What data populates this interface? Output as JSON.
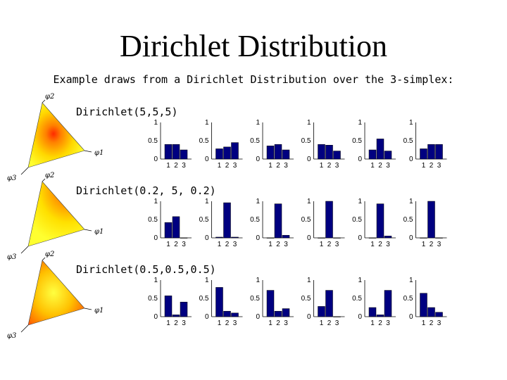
{
  "slide": {
    "title": "Dirichlet Distribution",
    "subtitle": "Example draws from a Dirichlet Distribution over the 3-simplex:"
  },
  "colors": {
    "bar": "#000080",
    "simplex_edge": "#ffff20",
    "simplex_peak": "#ff3000"
  },
  "chart_data": {
    "type": "bar",
    "rows": [
      {
        "label": "Dirichlet(5,5,5)",
        "simplex_axes": [
          "φ1",
          "φ2",
          "φ3"
        ],
        "simplex_mode": "center",
        "panels": [
          {
            "categories": [
              "1",
              "2",
              "3"
            ],
            "values": [
              0.4,
              0.4,
              0.25
            ],
            "ylim": [
              0,
              1
            ],
            "yticks": [
              "0",
              "0.5",
              "1"
            ]
          },
          {
            "categories": [
              "1",
              "2",
              "3"
            ],
            "values": [
              0.28,
              0.33,
              0.45
            ],
            "ylim": [
              0,
              1
            ],
            "yticks": [
              "0",
              "0.5",
              "1"
            ]
          },
          {
            "categories": [
              "1",
              "2",
              "3"
            ],
            "values": [
              0.36,
              0.4,
              0.25
            ],
            "ylim": [
              0,
              1
            ],
            "yticks": [
              "0",
              "0.5",
              "1"
            ]
          },
          {
            "categories": [
              "1",
              "2",
              "3"
            ],
            "values": [
              0.4,
              0.38,
              0.22
            ],
            "ylim": [
              0,
              1
            ],
            "yticks": [
              "0",
              "0.5",
              "1"
            ]
          },
          {
            "categories": [
              "1",
              "2",
              "3"
            ],
            "values": [
              0.25,
              0.55,
              0.22
            ],
            "ylim": [
              0,
              1
            ],
            "yticks": [
              "0",
              "0.5",
              "1"
            ]
          },
          {
            "categories": [
              "1",
              "2",
              "3"
            ],
            "values": [
              0.28,
              0.4,
              0.4
            ],
            "ylim": [
              0,
              1
            ],
            "yticks": [
              "0",
              "0.5",
              "1"
            ]
          }
        ]
      },
      {
        "label": "Dirichlet(0.2, 5, 0.2)",
        "simplex_axes": [
          "φ1",
          "φ2",
          "φ3"
        ],
        "simplex_mode": "phi2",
        "panels": [
          {
            "categories": [
              "1",
              "2",
              "3"
            ],
            "values": [
              0.42,
              0.58,
              0.0
            ],
            "ylim": [
              0,
              1
            ],
            "yticks": [
              "0",
              "0.5",
              "1"
            ]
          },
          {
            "categories": [
              "1",
              "2",
              "3"
            ],
            "values": [
              0.02,
              0.96,
              0.02
            ],
            "ylim": [
              0,
              1
            ],
            "yticks": [
              "0",
              "0.5",
              "1"
            ]
          },
          {
            "categories": [
              "1",
              "2",
              "3"
            ],
            "values": [
              0.0,
              0.93,
              0.07
            ],
            "ylim": [
              0,
              1
            ],
            "yticks": [
              "0",
              "0.5",
              "1"
            ]
          },
          {
            "categories": [
              "1",
              "2",
              "3"
            ],
            "values": [
              0.0,
              1.0,
              0.0
            ],
            "ylim": [
              0,
              1
            ],
            "yticks": [
              "0",
              "0.5",
              "1"
            ]
          },
          {
            "categories": [
              "1",
              "2",
              "3"
            ],
            "values": [
              0.0,
              0.93,
              0.05
            ],
            "ylim": [
              0,
              1
            ],
            "yticks": [
              "0",
              "0.5",
              "1"
            ]
          },
          {
            "categories": [
              "1",
              "2",
              "3"
            ],
            "values": [
              0.0,
              1.0,
              0.0
            ],
            "ylim": [
              0,
              1
            ],
            "yticks": [
              "0",
              "0.5",
              "1"
            ]
          }
        ]
      },
      {
        "label": "Dirichlet(0.5,0.5,0.5)",
        "simplex_axes": [
          "φ1",
          "φ2",
          "φ3"
        ],
        "simplex_mode": "corners",
        "panels": [
          {
            "categories": [
              "1",
              "2",
              "3"
            ],
            "values": [
              0.57,
              0.05,
              0.4
            ],
            "ylim": [
              0,
              1
            ],
            "yticks": [
              "0",
              "0.5",
              "1"
            ]
          },
          {
            "categories": [
              "1",
              "2",
              "3"
            ],
            "values": [
              0.8,
              0.15,
              0.1
            ],
            "ylim": [
              0,
              1
            ],
            "yticks": [
              "0",
              "0.5",
              "1"
            ]
          },
          {
            "categories": [
              "1",
              "2",
              "3"
            ],
            "values": [
              0.72,
              0.15,
              0.22
            ],
            "ylim": [
              0,
              1
            ],
            "yticks": [
              "0",
              "0.5",
              "1"
            ]
          },
          {
            "categories": [
              "1",
              "2",
              "3"
            ],
            "values": [
              0.28,
              0.72,
              0.0
            ],
            "ylim": [
              0,
              1
            ],
            "yticks": [
              "0",
              "0.5",
              "1"
            ]
          },
          {
            "categories": [
              "1",
              "2",
              "3"
            ],
            "values": [
              0.25,
              0.05,
              0.72
            ],
            "ylim": [
              0,
              1
            ],
            "yticks": [
              "0",
              "0.5",
              "1"
            ]
          },
          {
            "categories": [
              "1",
              "2",
              "3"
            ],
            "values": [
              0.64,
              0.25,
              0.12
            ],
            "ylim": [
              0,
              1
            ],
            "yticks": [
              "0",
              "0.5",
              "1"
            ]
          }
        ]
      }
    ]
  }
}
